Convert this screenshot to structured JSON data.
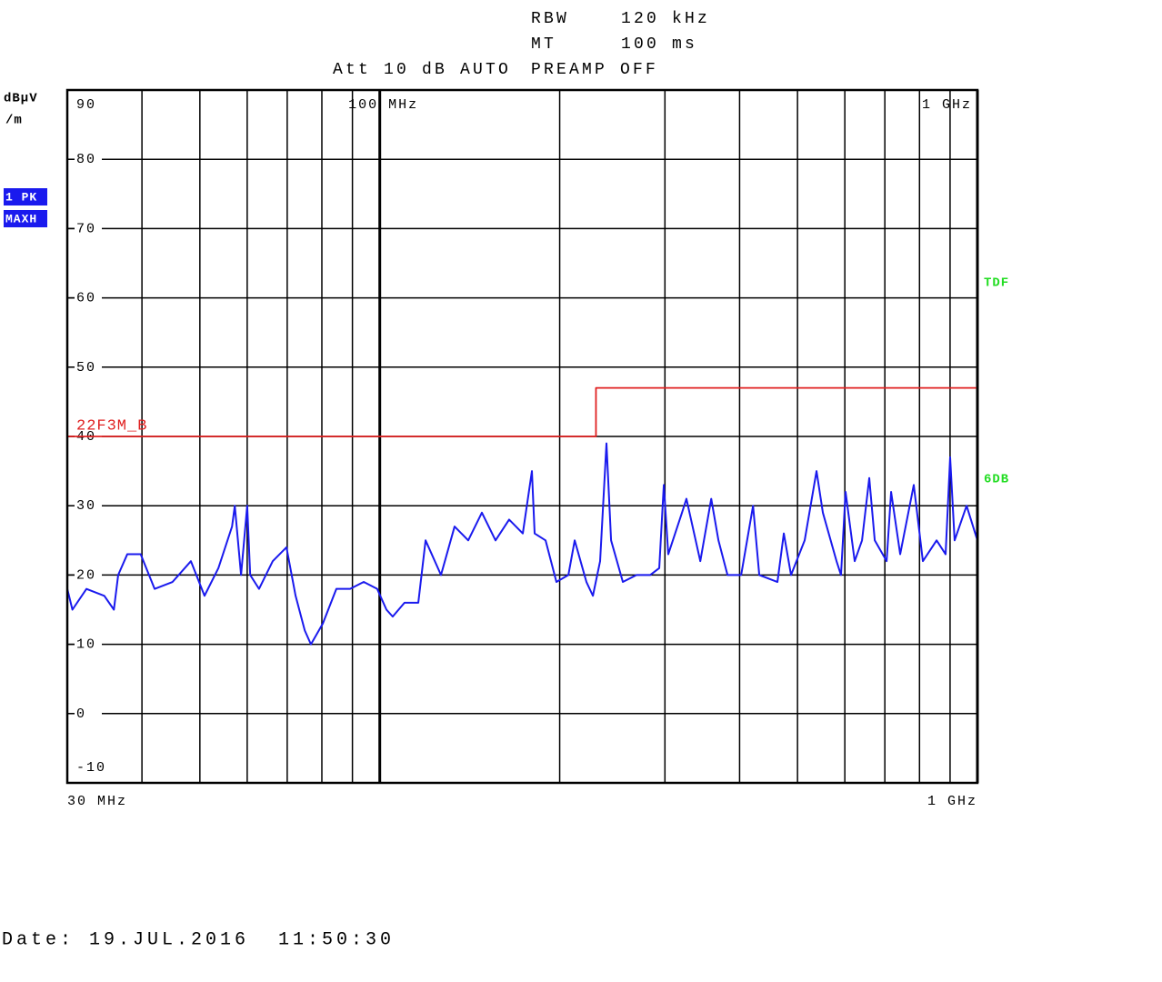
{
  "chart_data": {
    "type": "line",
    "xscale": "log",
    "header": {
      "rbw_label": "RBW",
      "rbw_value": "120 kHz",
      "mt_label": "MT",
      "mt_value": "100 ms",
      "att": "Att 10 dB AUTO",
      "preamp": "PREAMP OFF"
    },
    "ylabel": [
      "dBµV",
      "/m"
    ],
    "trace_mode": "MAXH",
    "side_labels": [
      "TDF",
      "6DB"
    ],
    "date": "Date: 19.JUL.2016  11:50:30",
    "xlim": [
      30,
      1000
    ],
    "ylim": [
      -10,
      90
    ],
    "yticks": [
      90,
      80,
      70,
      60,
      50,
      40,
      30,
      20,
      10,
      0,
      -10
    ],
    "xticks": [
      {
        "value": 30,
        "label": "30 MHz"
      },
      {
        "value": 1000,
        "label": "1 GHz"
      }
    ],
    "xticks_top": [
      {
        "value": 100,
        "label": "100 MHz"
      },
      {
        "value": 1000,
        "label": "1 GHz"
      }
    ],
    "xgrid": [
      40,
      50,
      60,
      70,
      80,
      90,
      200,
      300,
      400,
      500,
      600,
      700,
      800,
      900
    ],
    "grid": true,
    "series": [
      {
        "name": "1 PK",
        "color": "#1a1aee",
        "x": [
          30,
          30.6,
          32.3,
          34.6,
          35.9,
          36.5,
          37.8,
          39.8,
          42,
          45,
          48.3,
          50.9,
          53.7,
          56.6,
          57.2,
          58.6,
          60,
          60.7,
          62.8,
          66.2,
          69.8,
          72.3,
          74.9,
          76.7,
          80.3,
          84.6,
          89.2,
          94,
          99,
          102.6,
          105.1,
          110,
          116,
          119.3,
          126.6,
          133.4,
          140.6,
          148.2,
          156.2,
          164.6,
          173.5,
          179.7,
          181.6,
          189.4,
          197.5,
          206.8,
          211.9,
          221.7,
          227.3,
          233.7,
          239.5,
          243.8,
          255.1,
          268.9,
          283.4,
          293.5,
          298.7,
          303.9,
          320.4,
          325.9,
          343.8,
          358.6,
          368.7,
          381.8,
          402.4,
          421.3,
          431.5,
          462.8,
          474.3,
          487.7,
          514,
          538,
          551.3,
          581.1,
          591.2,
          601.7,
          623.2,
          641.1,
          659.2,
          673.3,
          704.8,
          717.1,
          742.6,
          782.5,
          810.4,
          854.5,
          884.6,
          900.2,
          915.9,
          959.1,
          1000
        ],
        "values": [
          18,
          15,
          18,
          17,
          15,
          20,
          23,
          23,
          18,
          19,
          22,
          17,
          21,
          27,
          30,
          20,
          30,
          20,
          18,
          22,
          24,
          17,
          12,
          10,
          13,
          18,
          18,
          19,
          18,
          15,
          14,
          16,
          16,
          25,
          20,
          27,
          25,
          29,
          25,
          28,
          26,
          35,
          26,
          25,
          19,
          20,
          25,
          19,
          17,
          22,
          39,
          25,
          19,
          20,
          20,
          21,
          33,
          23,
          29,
          31,
          22,
          31,
          25,
          20,
          20,
          30,
          20,
          19,
          26,
          20,
          25,
          35,
          29,
          22,
          20,
          32,
          22,
          25,
          34,
          25,
          22,
          32,
          23,
          33,
          22,
          25,
          23,
          37,
          25,
          30,
          25
        ]
      },
      {
        "name": "22F3M_B",
        "color": "#e02020",
        "x": [
          30,
          230,
          230,
          1000
        ],
        "values": [
          40,
          40,
          47,
          47
        ]
      }
    ]
  }
}
